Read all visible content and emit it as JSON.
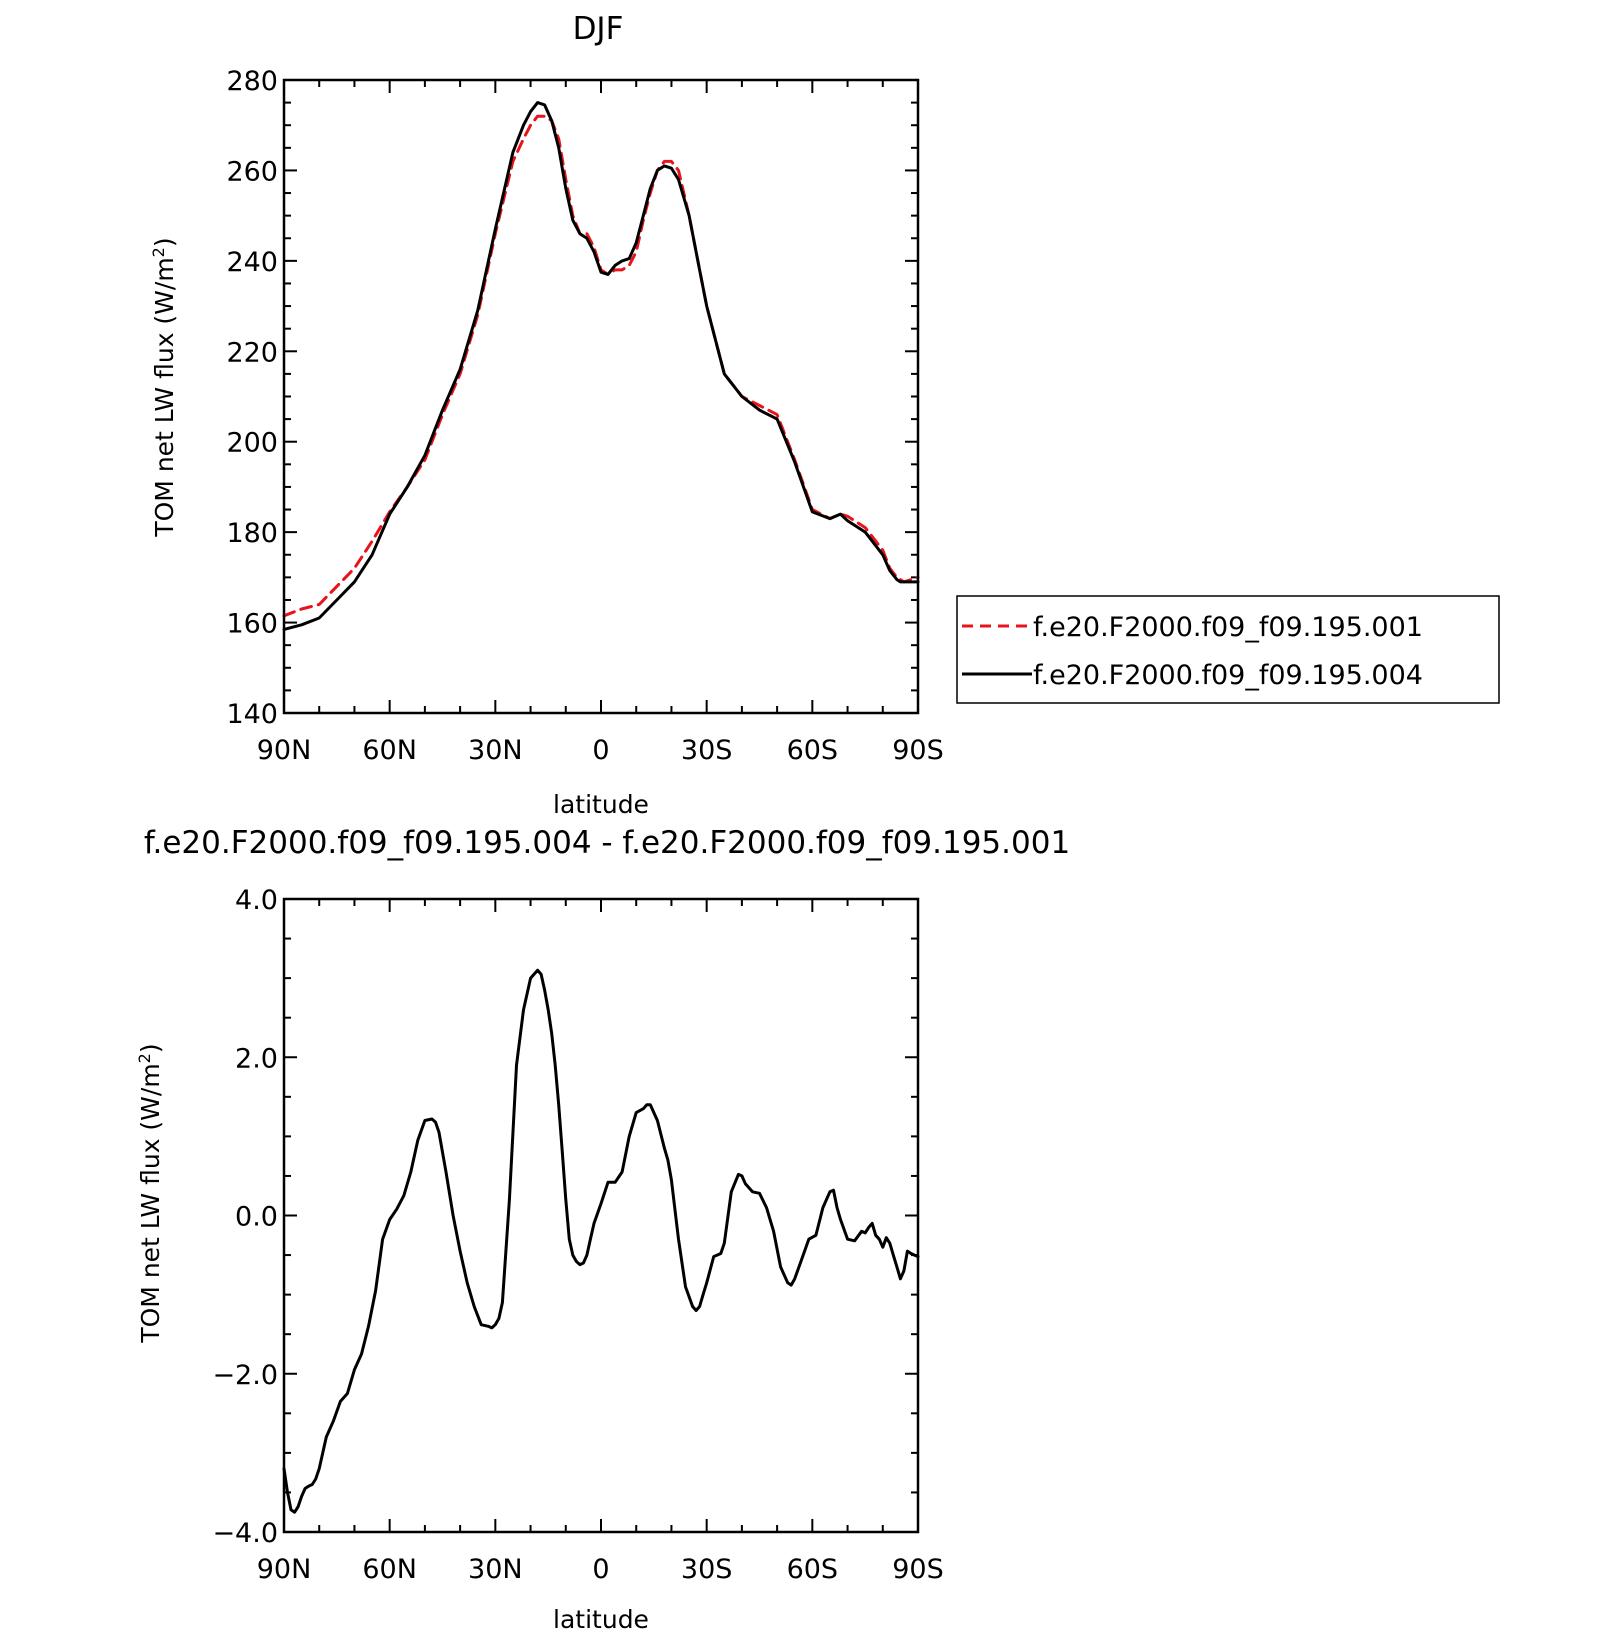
{
  "chart_data": [
    {
      "type": "line",
      "title": "DJF",
      "xlabel": "latitude",
      "ylabel": "TOM net LW flux (W/m",
      "ylabel_sup": "2",
      "ylabel_tail": ")",
      "xlim": [
        90,
        -90
      ],
      "ylim": [
        140,
        280
      ],
      "x_ticks": [
        90,
        60,
        30,
        0,
        -30,
        -60,
        -90
      ],
      "x_tick_labels": [
        "90N",
        "60N",
        "30N",
        "0",
        "30S",
        "60S",
        "90S"
      ],
      "y_ticks": [
        140,
        160,
        180,
        200,
        220,
        240,
        260,
        280
      ],
      "y_tick_labels": [
        "140",
        "160",
        "180",
        "200",
        "220",
        "240",
        "260",
        "280"
      ],
      "legend_position": "right",
      "series": [
        {
          "name": "f.e20.F2000.f09_f09.195.001",
          "color": "#e8141c",
          "dash": "dashed",
          "x": [
            90,
            85,
            80,
            75,
            70,
            65,
            60,
            55,
            50,
            45,
            40,
            35,
            30,
            25,
            22,
            20,
            18,
            16,
            14,
            12,
            10,
            8,
            6,
            4,
            2,
            0,
            -2,
            -4,
            -6,
            -8,
            -10,
            -12,
            -14,
            -16,
            -18,
            -20,
            -22,
            -25,
            -28,
            -30,
            -35,
            -40,
            -45,
            -50,
            -55,
            -60,
            -65,
            -68,
            -70,
            -75,
            -80,
            -82,
            -84,
            -85,
            -86,
            -88,
            -90
          ],
          "values": [
            161.5,
            163,
            164,
            168,
            172,
            178,
            184.5,
            190,
            196,
            206,
            215,
            228,
            246,
            262,
            267,
            270,
            272,
            272,
            271,
            267,
            258,
            250,
            246,
            246,
            243,
            238,
            237,
            238,
            238,
            239,
            242,
            249,
            255,
            260,
            262,
            262,
            260,
            250,
            238,
            230,
            215,
            210,
            208,
            206,
            196,
            185,
            183,
            184,
            183.5,
            181,
            176,
            172,
            170,
            169.5,
            169,
            169.5,
            170
          ]
        },
        {
          "name": "f.e20.F2000.f09_f09.195.004",
          "color": "#000000",
          "dash": "solid",
          "x": [
            90,
            85,
            80,
            75,
            70,
            65,
            60,
            55,
            50,
            45,
            40,
            35,
            30,
            25,
            22,
            20,
            18,
            16,
            14,
            12,
            10,
            8,
            6,
            4,
            2,
            0,
            -2,
            -4,
            -6,
            -8,
            -10,
            -12,
            -14,
            -16,
            -18,
            -20,
            -22,
            -25,
            -28,
            -30,
            -35,
            -40,
            -45,
            -50,
            -55,
            -60,
            -65,
            -68,
            -70,
            -75,
            -80,
            -82,
            -84,
            -85,
            -86,
            -88,
            -90
          ],
          "values": [
            158.5,
            159.5,
            161,
            165,
            169,
            175,
            184,
            190,
            197,
            207,
            216,
            229,
            247,
            264,
            270,
            273,
            275,
            274.5,
            271,
            265,
            256,
            249,
            246,
            245,
            242,
            237.5,
            237,
            239,
            240,
            240.5,
            244,
            250,
            256,
            260,
            261,
            260.5,
            258,
            250,
            238,
            230,
            215,
            210,
            207,
            205,
            195.5,
            184.5,
            183,
            184,
            182.5,
            180,
            175,
            171.5,
            169.5,
            169,
            169,
            169,
            169
          ]
        }
      ]
    },
    {
      "type": "line",
      "title": "f.e20.F2000.f09_f09.195.004 - f.e20.F2000.f09_f09.195.001",
      "xlabel": "latitude",
      "ylabel": "TOM net LW flux (W/m",
      "ylabel_sup": "2",
      "ylabel_tail": ")",
      "xlim": [
        90,
        -90
      ],
      "ylim": [
        -4.0,
        4.0
      ],
      "x_ticks": [
        90,
        60,
        30,
        0,
        -30,
        -60,
        -90
      ],
      "x_tick_labels": [
        "90N",
        "60N",
        "30N",
        "0",
        "30S",
        "60S",
        "90S"
      ],
      "y_ticks": [
        -4.0,
        -2.0,
        0.0,
        2.0,
        4.0
      ],
      "y_tick_labels": [
        "-4.0",
        "-2.0",
        "0.0",
        "2.0",
        "4.0"
      ],
      "series": [
        {
          "color": "#000000",
          "dash": "solid",
          "x": [
            90,
            89,
            88,
            87,
            86,
            85,
            84,
            83,
            82,
            81,
            80,
            78,
            76,
            74,
            72,
            70,
            68,
            66,
            64,
            62,
            60,
            58,
            56,
            54,
            52,
            50,
            48,
            47,
            46,
            45,
            44,
            42,
            40,
            38,
            36,
            34,
            32,
            31,
            30,
            29,
            28,
            26,
            24,
            22,
            20,
            18,
            17,
            16,
            15,
            14,
            13,
            12,
            11,
            10,
            9,
            8,
            7,
            6,
            5,
            4,
            3,
            2,
            0,
            -2,
            -4,
            -6,
            -8,
            -10,
            -12,
            -13,
            -14,
            -16,
            -18,
            -19,
            -20,
            -22,
            -24,
            -26,
            -27,
            -28,
            -29,
            -30,
            -32,
            -34,
            -35,
            -37,
            -39,
            -40,
            -41,
            -43,
            -45,
            -47,
            -49,
            -51,
            -53,
            -54,
            -55,
            -57,
            -59,
            -61,
            -63,
            -65,
            -66,
            -67,
            -68,
            -70,
            -72,
            -74,
            -75,
            -76,
            -77,
            -78,
            -79,
            -80,
            -81,
            -82,
            -83,
            -84,
            -85,
            -86,
            -87,
            -88,
            -89,
            -90
          ],
          "values": [
            -3.2,
            -3.5,
            -3.72,
            -3.75,
            -3.68,
            -3.55,
            -3.45,
            -3.42,
            -3.4,
            -3.33,
            -3.2,
            -2.8,
            -2.6,
            -2.35,
            -2.25,
            -1.95,
            -1.75,
            -1.4,
            -0.95,
            -0.3,
            -0.05,
            0.08,
            0.25,
            0.55,
            0.95,
            1.2,
            1.22,
            1.18,
            1.05,
            0.8,
            0.55,
            0.0,
            -0.45,
            -0.85,
            -1.15,
            -1.38,
            -1.4,
            -1.42,
            -1.38,
            -1.3,
            -1.1,
            0.2,
            1.9,
            2.6,
            3.0,
            3.1,
            3.05,
            2.85,
            2.6,
            2.3,
            1.9,
            1.4,
            0.8,
            0.2,
            -0.3,
            -0.5,
            -0.58,
            -0.62,
            -0.6,
            -0.5,
            -0.3,
            -0.1,
            0.15,
            0.42,
            0.42,
            0.55,
            1.0,
            1.3,
            1.35,
            1.4,
            1.4,
            1.2,
            0.85,
            0.7,
            0.45,
            -0.3,
            -0.9,
            -1.15,
            -1.2,
            -1.15,
            -1.0,
            -0.85,
            -0.52,
            -0.48,
            -0.35,
            0.3,
            0.52,
            0.5,
            0.4,
            0.3,
            0.28,
            0.1,
            -0.2,
            -0.65,
            -0.85,
            -0.88,
            -0.8,
            -0.55,
            -0.3,
            -0.25,
            0.1,
            0.3,
            0.32,
            0.1,
            -0.05,
            -0.3,
            -0.32,
            -0.2,
            -0.22,
            -0.15,
            -0.1,
            -0.25,
            -0.3,
            -0.4,
            -0.28,
            -0.35,
            -0.5,
            -0.65,
            -0.8,
            -0.7,
            -0.45,
            -0.48,
            -0.5,
            -0.52
          ]
        }
      ]
    }
  ]
}
